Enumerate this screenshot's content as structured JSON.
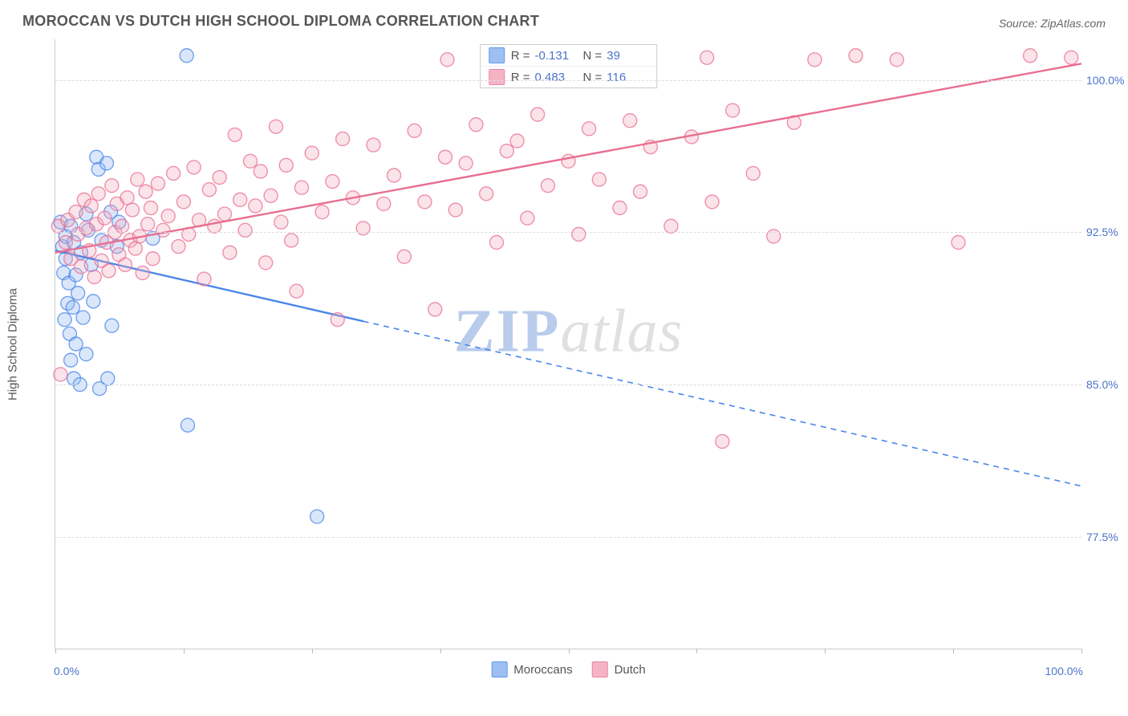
{
  "header": {
    "title": "MOROCCAN VS DUTCH HIGH SCHOOL DIPLOMA CORRELATION CHART",
    "source": "Source: ZipAtlas.com"
  },
  "watermark": {
    "part1": "ZIP",
    "part2": "atlas"
  },
  "chart": {
    "type": "scatter",
    "ylabel": "High School Diploma",
    "background_color": "#ffffff",
    "grid_color": "#dddddd",
    "axis_color": "#cccccc",
    "tick_color": "#4a74c9",
    "xlim": [
      0,
      100
    ],
    "ylim": [
      72,
      102
    ],
    "yticks": [
      {
        "v": 77.5,
        "label": "77.5%"
      },
      {
        "v": 85.0,
        "label": "85.0%"
      },
      {
        "v": 92.5,
        "label": "92.5%"
      },
      {
        "v": 100.0,
        "label": "100.0%"
      }
    ],
    "xtick_positions": [
      0,
      12.5,
      25,
      37.5,
      50,
      62.5,
      75,
      87.5,
      100
    ],
    "xaxis_min_label": "0.0%",
    "xaxis_max_label": "100.0%",
    "marker_radius": 8.5,
    "marker_stroke_width": 1.4,
    "marker_fill_opacity": 0.32,
    "line_width": 2.4,
    "series": [
      {
        "key": "moroccans",
        "name": "Moroccans",
        "color_stroke": "#4a86e8",
        "color_fill": "#8db5f0",
        "R": "-0.131",
        "N": "39",
        "trend": {
          "x1": 0,
          "y1": 91.6,
          "x2": 100,
          "y2": 80.0,
          "solid_until_x": 30
        },
        "points": [
          [
            0.5,
            93.0
          ],
          [
            0.7,
            91.8
          ],
          [
            0.8,
            90.5
          ],
          [
            0.9,
            88.2
          ],
          [
            1.0,
            92.3
          ],
          [
            1.0,
            91.2
          ],
          [
            1.2,
            89.0
          ],
          [
            1.3,
            90.0
          ],
          [
            1.4,
            87.5
          ],
          [
            1.5,
            92.8
          ],
          [
            1.5,
            86.2
          ],
          [
            1.7,
            88.8
          ],
          [
            1.8,
            85.3
          ],
          [
            1.8,
            92.0
          ],
          [
            2.0,
            90.4
          ],
          [
            2.0,
            87.0
          ],
          [
            2.2,
            89.5
          ],
          [
            2.4,
            85.0
          ],
          [
            2.5,
            91.5
          ],
          [
            2.7,
            88.3
          ],
          [
            3.0,
            93.4
          ],
          [
            3.0,
            86.5
          ],
          [
            3.2,
            92.6
          ],
          [
            3.5,
            90.9
          ],
          [
            3.7,
            89.1
          ],
          [
            4.0,
            96.2
          ],
          [
            4.2,
            95.6
          ],
          [
            4.3,
            84.8
          ],
          [
            4.5,
            92.1
          ],
          [
            5.0,
            95.9
          ],
          [
            5.1,
            85.3
          ],
          [
            5.4,
            93.5
          ],
          [
            6.0,
            91.8
          ],
          [
            6.2,
            93.0
          ],
          [
            9.5,
            92.2
          ],
          [
            12.8,
            101.2
          ],
          [
            12.9,
            83.0
          ],
          [
            25.5,
            78.5
          ],
          [
            5.5,
            87.9
          ]
        ]
      },
      {
        "key": "dutch",
        "name": "Dutch",
        "color_stroke": "#e86f91",
        "color_fill": "#f4a8bd",
        "R": "0.483",
        "N": "116",
        "trend": {
          "x1": 0,
          "y1": 91.5,
          "x2": 100,
          "y2": 100.8,
          "solid_until_x": 100
        },
        "points": [
          [
            0.3,
            92.8
          ],
          [
            0.5,
            85.5
          ],
          [
            1.0,
            92.0
          ],
          [
            1.2,
            93.1
          ],
          [
            1.5,
            91.2
          ],
          [
            2.0,
            93.5
          ],
          [
            2.2,
            92.4
          ],
          [
            2.5,
            90.8
          ],
          [
            2.8,
            94.1
          ],
          [
            3.0,
            92.7
          ],
          [
            3.3,
            91.6
          ],
          [
            3.5,
            93.8
          ],
          [
            3.8,
            90.3
          ],
          [
            4.0,
            92.9
          ],
          [
            4.2,
            94.4
          ],
          [
            4.5,
            91.1
          ],
          [
            4.8,
            93.2
          ],
          [
            5.0,
            92.0
          ],
          [
            5.2,
            90.6
          ],
          [
            5.5,
            94.8
          ],
          [
            5.8,
            92.5
          ],
          [
            6.0,
            93.9
          ],
          [
            6.2,
            91.4
          ],
          [
            6.5,
            92.8
          ],
          [
            6.8,
            90.9
          ],
          [
            7.0,
            94.2
          ],
          [
            7.3,
            92.1
          ],
          [
            7.5,
            93.6
          ],
          [
            7.8,
            91.7
          ],
          [
            8.0,
            95.1
          ],
          [
            8.2,
            92.3
          ],
          [
            8.5,
            90.5
          ],
          [
            8.8,
            94.5
          ],
          [
            9.0,
            92.9
          ],
          [
            9.3,
            93.7
          ],
          [
            9.5,
            91.2
          ],
          [
            10.0,
            94.9
          ],
          [
            10.5,
            92.6
          ],
          [
            11.0,
            93.3
          ],
          [
            11.5,
            95.4
          ],
          [
            12.0,
            91.8
          ],
          [
            12.5,
            94.0
          ],
          [
            13.0,
            92.4
          ],
          [
            13.5,
            95.7
          ],
          [
            14.0,
            93.1
          ],
          [
            14.5,
            90.2
          ],
          [
            15.0,
            94.6
          ],
          [
            15.5,
            92.8
          ],
          [
            16.0,
            95.2
          ],
          [
            16.5,
            93.4
          ],
          [
            17.0,
            91.5
          ],
          [
            17.5,
            97.3
          ],
          [
            18.0,
            94.1
          ],
          [
            18.5,
            92.6
          ],
          [
            19.0,
            96.0
          ],
          [
            19.5,
            93.8
          ],
          [
            20.0,
            95.5
          ],
          [
            20.5,
            91.0
          ],
          [
            21.0,
            94.3
          ],
          [
            21.5,
            97.7
          ],
          [
            22.0,
            93.0
          ],
          [
            22.5,
            95.8
          ],
          [
            23.0,
            92.1
          ],
          [
            23.5,
            89.6
          ],
          [
            24.0,
            94.7
          ],
          [
            25.0,
            96.4
          ],
          [
            26.0,
            93.5
          ],
          [
            27.0,
            95.0
          ],
          [
            27.5,
            88.2
          ],
          [
            28.0,
            97.1
          ],
          [
            29.0,
            94.2
          ],
          [
            30.0,
            92.7
          ],
          [
            31.0,
            96.8
          ],
          [
            32.0,
            93.9
          ],
          [
            33.0,
            95.3
          ],
          [
            34.0,
            91.3
          ],
          [
            35.0,
            97.5
          ],
          [
            36.0,
            94.0
          ],
          [
            37.0,
            88.7
          ],
          [
            38.0,
            96.2
          ],
          [
            38.2,
            101.0
          ],
          [
            39.0,
            93.6
          ],
          [
            40.0,
            95.9
          ],
          [
            41.0,
            97.8
          ],
          [
            42.0,
            94.4
          ],
          [
            42.2,
            101.2
          ],
          [
            43.0,
            92.0
          ],
          [
            44.0,
            96.5
          ],
          [
            45.0,
            97.0
          ],
          [
            46.0,
            93.2
          ],
          [
            47.0,
            98.3
          ],
          [
            48.0,
            94.8
          ],
          [
            50.0,
            96.0
          ],
          [
            51.0,
            92.4
          ],
          [
            52.0,
            97.6
          ],
          [
            53.0,
            95.1
          ],
          [
            54.0,
            101.0
          ],
          [
            55.0,
            93.7
          ],
          [
            56.0,
            98.0
          ],
          [
            57.0,
            94.5
          ],
          [
            58.0,
            96.7
          ],
          [
            60.0,
            92.8
          ],
          [
            62.0,
            97.2
          ],
          [
            63.5,
            101.1
          ],
          [
            64.0,
            94.0
          ],
          [
            65.0,
            82.2
          ],
          [
            66.0,
            98.5
          ],
          [
            68.0,
            95.4
          ],
          [
            70.0,
            92.3
          ],
          [
            72.0,
            97.9
          ],
          [
            74.0,
            101.0
          ],
          [
            78.0,
            101.2
          ],
          [
            82.0,
            101.0
          ],
          [
            88.0,
            92.0
          ],
          [
            95.0,
            101.2
          ],
          [
            99.0,
            101.1
          ]
        ]
      }
    ]
  },
  "legend_bottom": [
    {
      "series": "moroccans",
      "label": "Moroccans"
    },
    {
      "series": "dutch",
      "label": "Dutch"
    }
  ]
}
